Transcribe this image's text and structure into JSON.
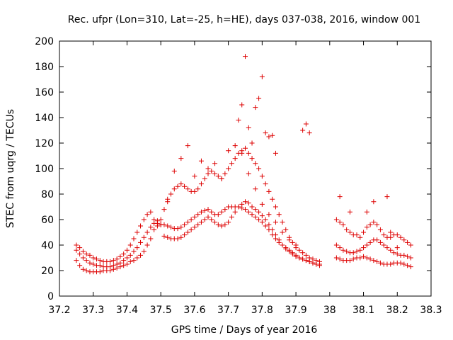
{
  "chart_data": {
    "type": "scatter",
    "title": "Rec. ufpr (Lon=310, Lat=-25, h=HE), days 037-038, 2016, window 001",
    "xlabel": "GPS time / Days of year 2016",
    "ylabel": "STEC from uqrg / TECUs",
    "xlim": [
      37.2,
      38.3
    ],
    "ylim": [
      0,
      200
    ],
    "xticks": [
      37.2,
      37.3,
      37.4,
      37.5,
      37.6,
      37.7,
      37.8,
      37.9,
      38,
      38.1,
      38.2,
      38.3
    ],
    "xtick_labels": [
      "37.2",
      "37.3",
      "37.4",
      "37.5",
      "37.6",
      "37.7",
      "37.8",
      "37.9",
      "38",
      "38.1",
      "38.2",
      "38.3"
    ],
    "yticks": [
      0,
      20,
      40,
      60,
      80,
      100,
      120,
      140,
      160,
      180,
      200
    ],
    "ytick_labels": [
      "0",
      "20",
      "40",
      "60",
      "80",
      "100",
      "120",
      "140",
      "160",
      "180",
      "200"
    ],
    "grid": false,
    "marker": "+",
    "color": "#dd0000",
    "series": [
      {
        "name": "STEC",
        "x": [
          37.25,
          37.26,
          37.27,
          37.28,
          37.29,
          37.3,
          37.31,
          37.32,
          37.33,
          37.34,
          37.35,
          37.36,
          37.37,
          37.38,
          37.39,
          37.4,
          37.41,
          37.42,
          37.43,
          37.44,
          37.45,
          37.46,
          37.47,
          37.48,
          37.49,
          37.5,
          37.25,
          37.26,
          37.27,
          37.28,
          37.29,
          37.3,
          37.31,
          37.32,
          37.33,
          37.34,
          37.35,
          37.36,
          37.37,
          37.38,
          37.39,
          37.4,
          37.41,
          37.42,
          37.43,
          37.44,
          37.45,
          37.46,
          37.47,
          37.48,
          37.49,
          37.5,
          37.25,
          37.26,
          37.27,
          37.28,
          37.29,
          37.3,
          37.31,
          37.32,
          37.33,
          37.34,
          37.35,
          37.36,
          37.37,
          37.38,
          37.39,
          37.4,
          37.41,
          37.42,
          37.43,
          37.44,
          37.45,
          37.46,
          37.47,
          37.48,
          37.49,
          37.5,
          37.51,
          37.52,
          37.53,
          37.54,
          37.55,
          37.56,
          37.57,
          37.58,
          37.59,
          37.6,
          37.61,
          37.62,
          37.63,
          37.64,
          37.65,
          37.66,
          37.67,
          37.68,
          37.69,
          37.7,
          37.71,
          37.72,
          37.73,
          37.74,
          37.75,
          37.76,
          37.77,
          37.78,
          37.79,
          37.8,
          37.81,
          37.82,
          37.83,
          37.84,
          37.85,
          37.86,
          37.87,
          37.88,
          37.89,
          37.9,
          37.91,
          37.92,
          37.93,
          37.94,
          37.95,
          37.96,
          37.97,
          37.51,
          37.52,
          37.53,
          37.54,
          37.55,
          37.56,
          37.57,
          37.58,
          37.59,
          37.6,
          37.61,
          37.62,
          37.63,
          37.64,
          37.65,
          37.66,
          37.67,
          37.68,
          37.69,
          37.7,
          37.71,
          37.72,
          37.73,
          37.74,
          37.75,
          37.76,
          37.77,
          37.78,
          37.79,
          37.8,
          37.81,
          37.82,
          37.83,
          37.84,
          37.85,
          37.86,
          37.87,
          37.88,
          37.89,
          37.9,
          37.91,
          37.92,
          37.93,
          37.94,
          37.95,
          37.96,
          37.97,
          37.51,
          37.52,
          37.53,
          37.54,
          37.55,
          37.56,
          37.57,
          37.58,
          37.59,
          37.6,
          37.61,
          37.62,
          37.63,
          37.64,
          37.65,
          37.66,
          37.67,
          37.68,
          37.69,
          37.7,
          37.71,
          37.72,
          37.73,
          37.74,
          37.75,
          37.76,
          37.77,
          37.78,
          37.79,
          37.8,
          37.81,
          37.82,
          37.83,
          37.84,
          37.85,
          37.86,
          37.87,
          37.88,
          37.89,
          37.9,
          37.91,
          37.92,
          37.93,
          37.94,
          37.95,
          37.96,
          37.97,
          37.52,
          37.54,
          37.56,
          37.58,
          37.6,
          37.62,
          37.64,
          37.66,
          37.68,
          37.7,
          37.72,
          37.74,
          37.76,
          37.78,
          37.8,
          37.82,
          37.84,
          37.86,
          37.88,
          37.9,
          37.73,
          37.74,
          37.75,
          37.76,
          37.77,
          37.78,
          37.79,
          37.8,
          37.81,
          37.82,
          37.83,
          37.84,
          37.92,
          37.93,
          37.94,
          38.02,
          38.03,
          38.04,
          38.05,
          38.06,
          38.07,
          38.08,
          38.09,
          38.1,
          38.11,
          38.12,
          38.13,
          38.14,
          38.15,
          38.16,
          38.17,
          38.18,
          38.19,
          38.2,
          38.21,
          38.22,
          38.23,
          38.24,
          38.02,
          38.03,
          38.04,
          38.05,
          38.06,
          38.07,
          38.08,
          38.09,
          38.1,
          38.11,
          38.12,
          38.13,
          38.14,
          38.15,
          38.16,
          38.17,
          38.18,
          38.19,
          38.2,
          38.21,
          38.22,
          38.23,
          38.24,
          38.02,
          38.03,
          38.04,
          38.05,
          38.06,
          38.07,
          38.08,
          38.09,
          38.1,
          38.11,
          38.12,
          38.13,
          38.14,
          38.15,
          38.16,
          38.17,
          38.18,
          38.19,
          38.2,
          38.21,
          38.22,
          38.23,
          38.24,
          38.03,
          38.06,
          38.11,
          38.13,
          38.17,
          38.18,
          38.2
        ],
        "y": [
          28,
          24,
          21,
          20,
          19,
          19,
          19,
          19,
          20,
          20,
          20,
          21,
          22,
          23,
          24,
          25,
          27,
          28,
          30,
          32,
          35,
          40,
          45,
          52,
          55,
          56,
          36,
          33,
          30,
          28,
          26,
          25,
          24,
          24,
          23,
          23,
          23,
          24,
          25,
          26,
          28,
          30,
          32,
          35,
          38,
          42,
          46,
          50,
          54,
          57,
          59,
          60,
          40,
          38,
          35,
          33,
          32,
          30,
          29,
          28,
          27,
          27,
          27,
          28,
          29,
          31,
          33,
          36,
          40,
          45,
          50,
          55,
          60,
          64,
          66,
          60,
          57,
          56,
          56,
          55,
          54,
          53,
          53,
          54,
          56,
          58,
          60,
          62,
          64,
          66,
          67,
          68,
          66,
          64,
          64,
          66,
          68,
          70,
          70,
          70,
          70,
          69,
          68,
          66,
          64,
          62,
          60,
          58,
          55,
          52,
          48,
          45,
          42,
          40,
          38,
          36,
          34,
          32,
          30,
          29,
          28,
          27,
          26,
          25,
          25,
          47,
          46,
          45,
          45,
          45,
          46,
          48,
          50,
          52,
          54,
          56,
          58,
          60,
          62,
          60,
          58,
          56,
          55,
          56,
          58,
          62,
          66,
          70,
          72,
          74,
          73,
          70,
          68,
          66,
          63,
          60,
          56,
          52,
          48,
          44,
          40,
          37,
          35,
          33,
          31,
          30,
          29,
          28,
          27,
          26,
          25,
          24,
          68,
          74,
          80,
          84,
          86,
          88,
          86,
          84,
          82,
          82,
          84,
          88,
          92,
          96,
          98,
          96,
          94,
          92,
          96,
          100,
          104,
          108,
          112,
          114,
          116,
          112,
          108,
          104,
          100,
          94,
          88,
          82,
          76,
          70,
          64,
          58,
          52,
          46,
          42,
          38,
          36,
          34,
          32,
          30,
          29,
          28,
          27,
          76,
          98,
          108,
          118,
          94,
          106,
          100,
          104,
          92,
          114,
          118,
          112,
          96,
          84,
          72,
          64,
          58,
          50,
          44,
          40,
          138,
          150,
          188,
          132,
          120,
          148,
          155,
          172,
          128,
          125,
          126,
          112,
          130,
          135,
          128,
          30,
          29,
          28,
          28,
          28,
          29,
          30,
          30,
          31,
          30,
          29,
          28,
          27,
          26,
          25,
          25,
          25,
          26,
          26,
          26,
          25,
          24,
          23,
          40,
          38,
          36,
          35,
          34,
          34,
          35,
          36,
          38,
          40,
          42,
          44,
          44,
          42,
          40,
          38,
          36,
          34,
          33,
          32,
          32,
          31,
          30,
          60,
          58,
          56,
          52,
          50,
          48,
          48,
          46,
          50,
          54,
          56,
          58,
          56,
          52,
          48,
          46,
          46,
          48,
          48,
          46,
          44,
          42,
          40,
          78,
          66,
          66,
          74,
          78,
          50,
          38
        ]
      }
    ]
  }
}
